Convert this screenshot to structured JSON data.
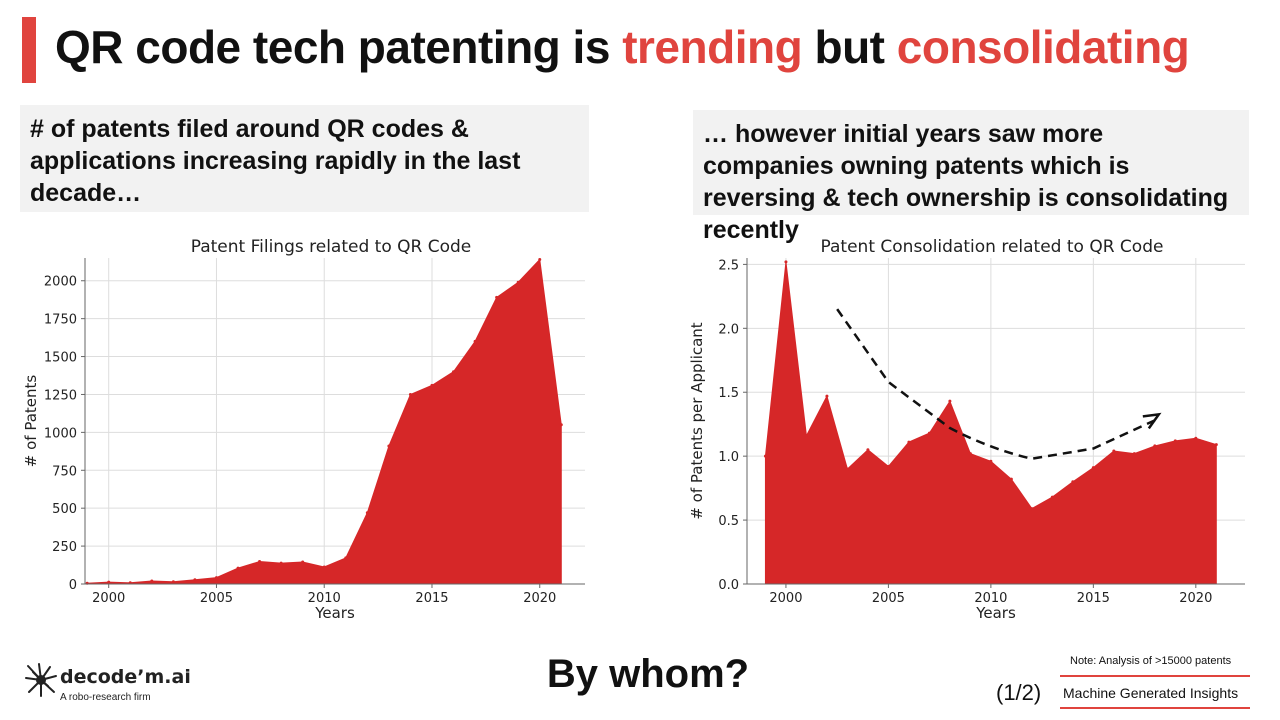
{
  "slide": {
    "title_part1": "QR code tech patenting is ",
    "title_accent1": "trending",
    "title_part2": " but ",
    "title_accent2": "consolidating",
    "callout_left": "# of patents filed around QR codes & applications increasing rapidly in the last decade…",
    "callout_right": "… however initial years saw more companies owning patents which is reversing & tech ownership is consolidating recently",
    "bottom_question": "By whom?",
    "pager": "(1/2)",
    "note": "Note: Analysis of >15000 patents",
    "insights_label": "Machine Generated Insights"
  },
  "logo": {
    "name": "decode’m.ai",
    "tagline": "A robo-research firm"
  },
  "colors": {
    "accent": "#e0443e",
    "fill": "#d62728",
    "grid": "#dddddd",
    "callout_bg": "#f2f2f2"
  },
  "chart_data": [
    {
      "type": "area",
      "title": "Patent Filings related to QR Code",
      "xlabel": "Years",
      "ylabel": "# of Patents",
      "xlim": [
        1998.9,
        2022.1
      ],
      "ylim": [
        0,
        2150
      ],
      "xticks": [
        2000,
        2005,
        2010,
        2015,
        2020
      ],
      "yticks": [
        0,
        250,
        500,
        750,
        1000,
        1250,
        1500,
        1750,
        2000
      ],
      "grid": true,
      "x": [
        1999,
        2000,
        2001,
        2002,
        2003,
        2004,
        2005,
        2006,
        2007,
        2008,
        2009,
        2010,
        2011,
        2012,
        2013,
        2014,
        2015,
        2016,
        2017,
        2018,
        2019,
        2020,
        2021
      ],
      "values": [
        5,
        12,
        8,
        20,
        15,
        28,
        42,
        105,
        148,
        138,
        145,
        112,
        172,
        470,
        910,
        1250,
        1310,
        1400,
        1600,
        1890,
        1990,
        2140,
        1050
      ]
    },
    {
      "type": "area",
      "title": "Patent Consolidation related to QR Code",
      "xlabel": "Years",
      "ylabel": "# of Patents per Applicant",
      "xlim": [
        1998.1,
        2022.4
      ],
      "ylim": [
        0,
        2.55
      ],
      "xticks": [
        2000,
        2005,
        2010,
        2015,
        2020
      ],
      "yticks": [
        0.0,
        0.5,
        1.0,
        1.5,
        2.0,
        2.5
      ],
      "grid": true,
      "x": [
        1999,
        2000,
        2001,
        2002,
        2003,
        2004,
        2005,
        2006,
        2007,
        2008,
        2009,
        2010,
        2011,
        2012,
        2013,
        2014,
        2015,
        2016,
        2017,
        2018,
        2019,
        2020,
        2021
      ],
      "values": [
        1.0,
        2.52,
        1.16,
        1.47,
        0.9,
        1.05,
        0.92,
        1.11,
        1.18,
        1.43,
        1.02,
        0.96,
        0.82,
        0.59,
        0.68,
        0.8,
        0.91,
        1.04,
        1.02,
        1.08,
        1.12,
        1.14,
        1.09
      ],
      "trend": {
        "x": [
          2002.5,
          2005,
          2008,
          2012,
          2015,
          2018
        ],
        "y": [
          2.15,
          1.58,
          1.22,
          0.98,
          1.06,
          1.28
        ]
      }
    }
  ]
}
